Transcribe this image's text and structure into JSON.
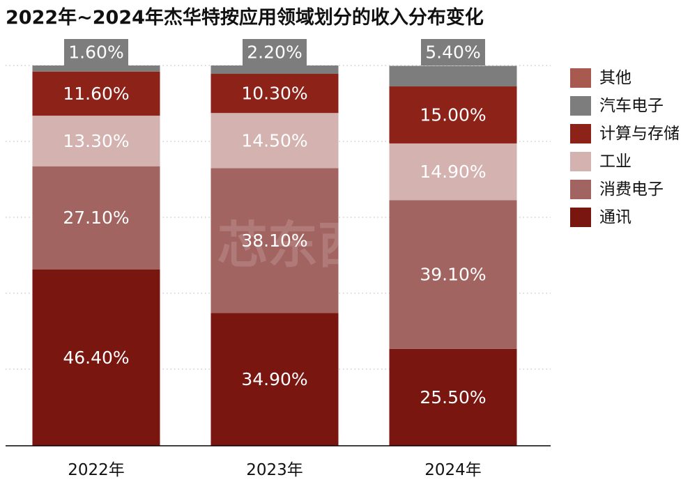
{
  "chart_data": {
    "type": "bar",
    "stacked": true,
    "title": "2022年~2024年杰华特按应用领域划分的收入分布变化",
    "categories": [
      "2022年",
      "2023年",
      "2024年"
    ],
    "unit": "%",
    "ylim": [
      0,
      100
    ],
    "grid": "horizontal dotted",
    "legend_position": "right",
    "series": [
      {
        "name": "通讯",
        "color": "#7a1610",
        "values": [
          46.4,
          34.9,
          25.5
        ],
        "labels": [
          "46.40%",
          "34.90%",
          "25.50%"
        ]
      },
      {
        "name": "消费电子",
        "color": "#a26461",
        "values": [
          27.1,
          38.1,
          39.1
        ],
        "labels": [
          "27.10%",
          "38.10%",
          "39.10%"
        ]
      },
      {
        "name": "工业",
        "color": "#d4b2b0",
        "values": [
          13.3,
          14.5,
          14.9
        ],
        "labels": [
          "13.30%",
          "14.50%",
          "14.90%"
        ]
      },
      {
        "name": "计算与存储",
        "color": "#8c2218",
        "values": [
          11.6,
          10.3,
          15.0
        ],
        "labels": [
          "11.60%",
          "10.30%",
          "15.00%"
        ]
      },
      {
        "name": "汽车电子",
        "color": "#7d7d7d",
        "values": [
          1.6,
          2.2,
          5.4
        ],
        "labels": [
          "1.60%",
          "2.20%",
          "5.40%"
        ]
      },
      {
        "name": "其他",
        "color": "#a85a4e",
        "values": [
          0,
          0,
          0
        ],
        "labels": [
          "",
          "",
          ""
        ]
      }
    ],
    "legend_order": [
      "其他",
      "汽车电子",
      "计算与存储",
      "工业",
      "消费电子",
      "通讯"
    ],
    "watermark": "芯东西"
  }
}
